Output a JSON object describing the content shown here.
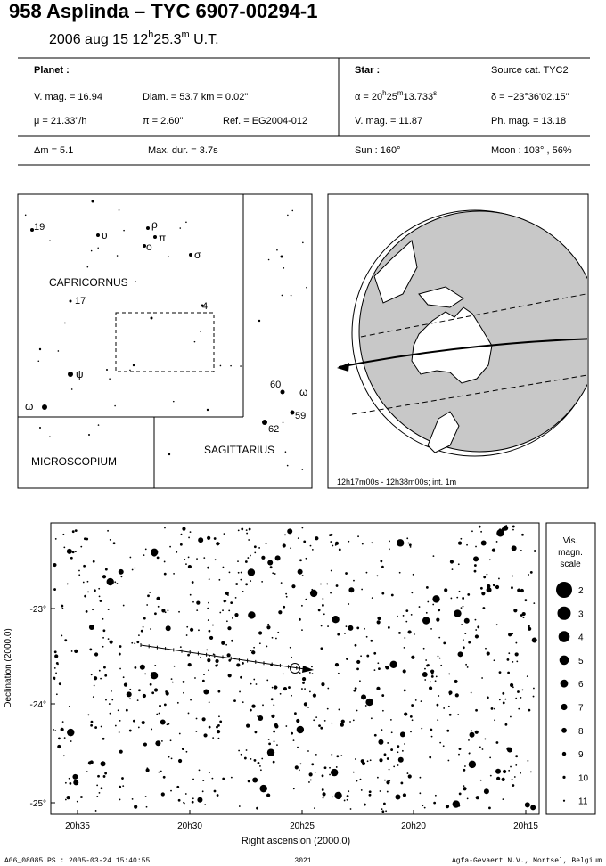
{
  "header": {
    "title": "958 Asplinda  –  TYC 6907-00294-1",
    "date": {
      "prefix": "2006 aug 15  12",
      "h": "h",
      "min": "25.3",
      "m": "m",
      "suffix": " U.T."
    }
  },
  "info": {
    "planet": {
      "label": "Planet :",
      "vmag": "V. mag. = 16.94",
      "diam": "Diam. = 53.7 km = 0.02\"",
      "mu": "μ = 21.33\"/h",
      "parallax": "π =  2.60\"",
      "ref": "Ref. = EG2004-012"
    },
    "star": {
      "label": "Star :",
      "source": "Source cat.  TYC2",
      "alpha": {
        "a": "α = 20",
        "h": "h",
        "mm": "25",
        "m": "m",
        "ss": "13.733",
        "s": "s"
      },
      "delta": "δ = −23°36'02.15\"",
      "vmag": "V. mag. = 11.87",
      "phmag": "Ph. mag. = 13.18"
    },
    "dm": "Δm = 5.1",
    "maxdur": "Max. dur. = 3.7s",
    "sun": "Sun : 160°",
    "moon": "Moon : 103° , 56%"
  },
  "finder": {
    "labels": [
      "19",
      "υ",
      "ρ",
      "π",
      "ο",
      "σ",
      "CAPRICORNUS",
      "17",
      "4",
      "ψ",
      "ω",
      "60",
      "ω",
      "59",
      "62",
      "MICROSCOPIUM",
      "SAGITTARIUS"
    ]
  },
  "globe": {
    "caption": "12h17m00s - 12h38m00s; int.  1m"
  },
  "starchart": {
    "ylabel": "Declination (2000.0)",
    "xlabel": "Right ascension (2000.0)",
    "yticks": [
      "-23°",
      "-24°",
      "-25°"
    ],
    "xticks": [
      "20h35",
      "20h30",
      "20h25",
      "20h20",
      "20h15"
    ],
    "legend": {
      "title": [
        "Vis.",
        "magn.",
        "scale"
      ],
      "labels": [
        2,
        3,
        4,
        5,
        6,
        7,
        8,
        9,
        10,
        11
      ]
    }
  },
  "footer": {
    "left": "A06_08085.PS : 2005-03-24 15:40:55",
    "center": "3021",
    "right": "Agfa-Gevaert N.V., Mortsel, Belgium"
  }
}
